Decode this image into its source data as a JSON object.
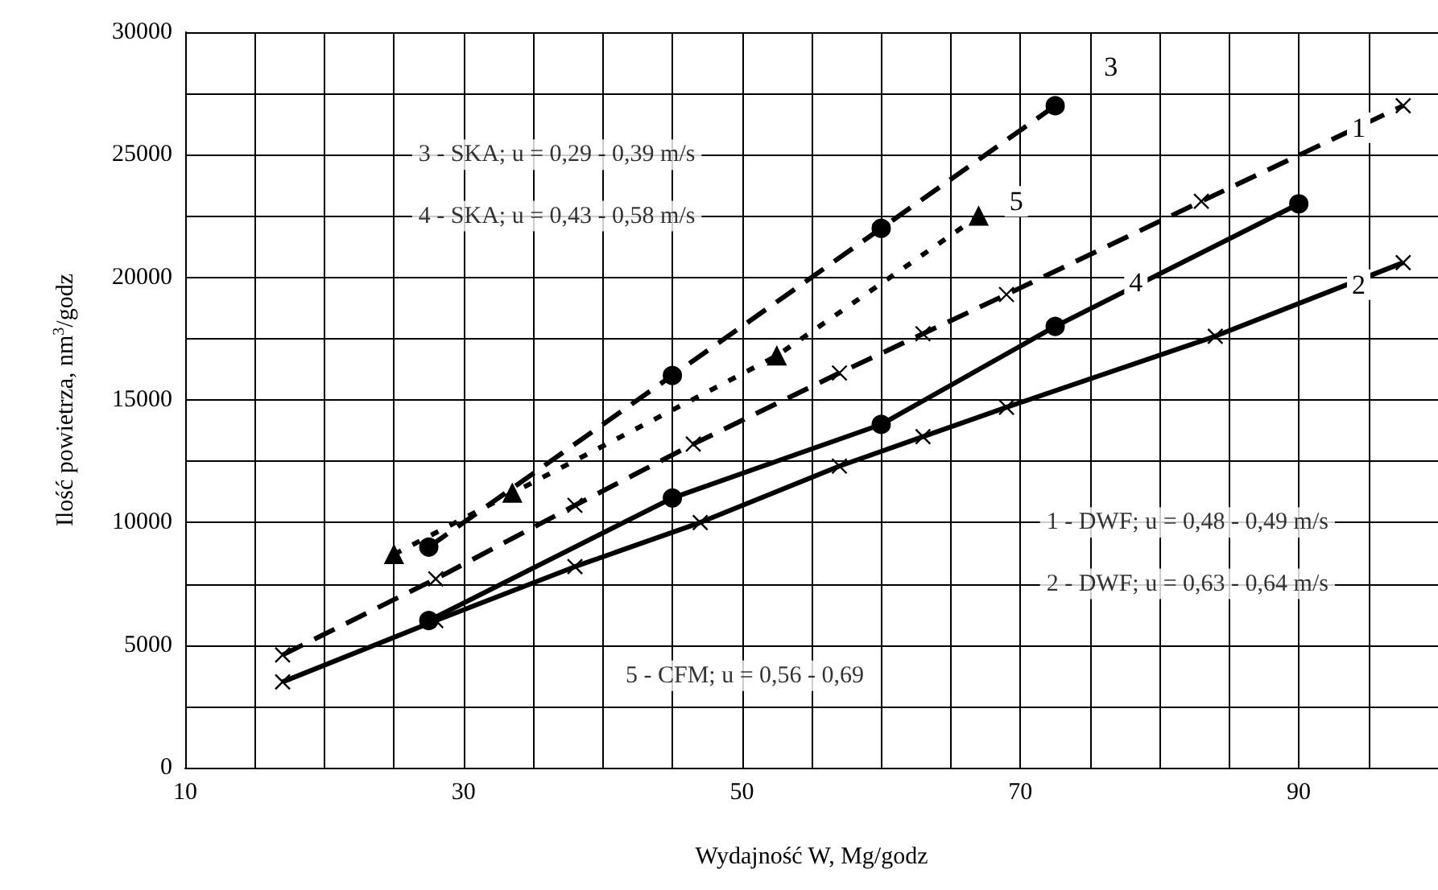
{
  "chart_data": {
    "type": "line",
    "xlabel": "Wydajność W, Mg/godz",
    "ylabel": "Ilość powietrza, nm$^{3}$/godz",
    "xlim": [
      10,
      100
    ],
    "ylim": [
      0,
      30000
    ],
    "xticks": [
      10,
      {
        "value": 15,
        "label": null
      },
      {
        "value": 20,
        "label": null
      },
      {
        "value": 25,
        "label": null
      },
      30,
      {
        "value": 35,
        "label": null
      },
      {
        "value": 40,
        "label": null
      },
      {
        "value": 45,
        "label": null
      },
      50,
      {
        "value": 55,
        "label": null
      },
      {
        "value": 60,
        "label": null
      },
      {
        "value": 65,
        "label": null
      },
      70,
      {
        "value": 75,
        "label": null
      },
      {
        "value": 80,
        "label": null
      },
      {
        "value": 85,
        "label": null
      },
      90,
      {
        "value": 95,
        "label": null
      }
    ],
    "yticks": [
      0,
      {
        "value": 2500,
        "label": null
      },
      5000,
      {
        "value": 7500,
        "label": null
      },
      10000,
      {
        "value": 12500,
        "label": null
      },
      15000,
      {
        "value": 17500,
        "label": null
      },
      20000,
      {
        "value": 22500,
        "label": null
      },
      25000,
      {
        "value": 27500,
        "label": null
      },
      30000
    ],
    "grid": true,
    "legend": false,
    "series": [
      {
        "name": "1",
        "color": "#000000",
        "marker": "cross",
        "line_style": "dashed",
        "x": [
          17,
          28,
          38,
          46.5,
          57,
          63,
          69,
          83,
          97.5
        ],
        "values": [
          4600,
          7700,
          10700,
          13200,
          16100,
          17700,
          19300,
          23100,
          27000
        ]
      },
      {
        "name": "2",
        "color": "#000000",
        "marker": "cross",
        "line_style": "solid",
        "x": [
          17,
          28,
          38,
          47,
          57,
          63,
          69,
          84,
          97.5
        ],
        "values": [
          3500,
          6000,
          8200,
          10000,
          12300,
          13500,
          14700,
          17600,
          20600
        ]
      },
      {
        "name": "3",
        "color": "#000000",
        "marker": "circle",
        "line_style": "dashed",
        "x": [
          27.5,
          45,
          60,
          72.5
        ],
        "values": [
          9000,
          16000,
          22000,
          27000
        ]
      },
      {
        "name": "4",
        "color": "#000000",
        "marker": "circle",
        "line_style": "solid",
        "x": [
          27.5,
          45,
          60,
          72.5,
          90
        ],
        "values": [
          6000,
          11000,
          14000,
          18000,
          23000
        ]
      },
      {
        "name": "5",
        "color": "#000000",
        "marker": "triangle",
        "line_style": "dotted",
        "x": [
          25,
          33.5,
          52.5,
          67
        ],
        "values": [
          8700,
          11200,
          16800,
          22500
        ]
      }
    ],
    "annotations": [
      "3 - SKA; u = 0,29 - 0,39 m/s",
      "4 - SKA; u = 0,43 - 0,58 m/s",
      "1 - DWF; u = 0,48 - 0,49 m/s",
      "2 - DWF; u = 0,63 - 0,64 m/s",
      "5 - CFM; u = 0,56 - 0,69"
    ]
  }
}
